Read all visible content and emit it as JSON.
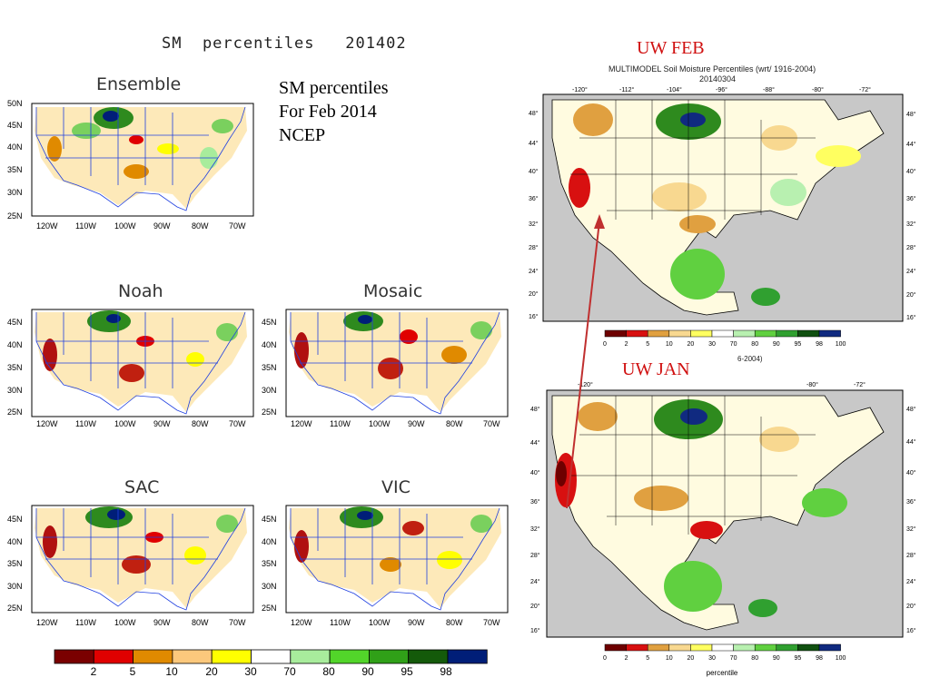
{
  "main_title": "SM  percentiles   201402",
  "caption_lines": [
    "SM percentiles",
    "For Feb 2014",
    "NCEP"
  ],
  "panels": [
    {
      "name": "Ensemble",
      "lat_labels": [
        "50N",
        "45N",
        "40N",
        "35N",
        "30N",
        "25N"
      ],
      "lon_labels": [
        "120W",
        "110W",
        "100W",
        "90W",
        "80W",
        "70W"
      ]
    },
    {
      "name": "Noah",
      "lat_labels": [
        "45N",
        "40N",
        "35N",
        "30N",
        "25N"
      ],
      "lon_labels": [
        "120W",
        "110W",
        "100W",
        "90W",
        "80W",
        "70W"
      ]
    },
    {
      "name": "Mosaic",
      "lat_labels": [
        "45N",
        "40N",
        "35N",
        "30N",
        "25N"
      ],
      "lon_labels": [
        "120W",
        "110W",
        "100W",
        "90W",
        "80W",
        "70W"
      ]
    },
    {
      "name": "SAC",
      "lat_labels": [
        "45N",
        "40N",
        "35N",
        "30N",
        "25N"
      ],
      "lon_labels": [
        "120W",
        "110W",
        "100W",
        "90W",
        "80W",
        "70W"
      ]
    },
    {
      "name": "VIC",
      "lat_labels": [
        "45N",
        "40N",
        "35N",
        "30N",
        "25N"
      ],
      "lon_labels": [
        "120W",
        "110W",
        "100W",
        "90W",
        "80W",
        "70W"
      ]
    }
  ],
  "ncep_legend": {
    "colors": [
      "#7a0000",
      "#e00000",
      "#e08a00",
      "#fcc87c",
      "#ffff00",
      "#ffffff",
      "#a8ec9c",
      "#52d52a",
      "#30a018",
      "#145a0a",
      "#001e78"
    ],
    "labels": [
      "2",
      "5",
      "10",
      "20",
      "30",
      "70",
      "80",
      "90",
      "95",
      "98"
    ]
  },
  "uw_feb": {
    "label": "UW FEB",
    "title": "MULTIMODEL Soil Moisture Percentiles (wrt/ 1916-2004)",
    "date": "20140304",
    "top_lon": [
      "-120°",
      "-112°",
      "-104°",
      "-96°",
      "-88°",
      "-80°",
      "-72°"
    ],
    "left_lat": [
      "48°",
      "44°",
      "40°",
      "36°",
      "32°",
      "28°",
      "24°",
      "20°",
      "16°"
    ],
    "right_lat": [
      "48°",
      "44°",
      "40°",
      "36°",
      "32°",
      "28°",
      "24°",
      "20°",
      "16°"
    ]
  },
  "uw_jan": {
    "label": "UW JAN",
    "title_fragment": "6-2004)",
    "top_lon": [
      "-120°",
      "-80°",
      "-72°"
    ],
    "left_lat": [
      "48°",
      "44°",
      "40°",
      "36°",
      "32°",
      "28°",
      "24°",
      "20°",
      "16°"
    ],
    "right_lat": [
      "48°",
      "44°",
      "40°",
      "36°",
      "32°",
      "28°",
      "24°",
      "20°",
      "16°"
    ],
    "xlabel": "percentile"
  },
  "uw_legend": {
    "colors": [
      "#6e0000",
      "#d81010",
      "#e0a040",
      "#f8d890",
      "#ffff60",
      "#ffffff",
      "#b8f0b0",
      "#60d040",
      "#30a030",
      "#105010",
      "#102a80"
    ],
    "labels": [
      "0",
      "2",
      "5",
      "10",
      "20",
      "30",
      "70",
      "80",
      "90",
      "95",
      "98",
      "100"
    ]
  }
}
